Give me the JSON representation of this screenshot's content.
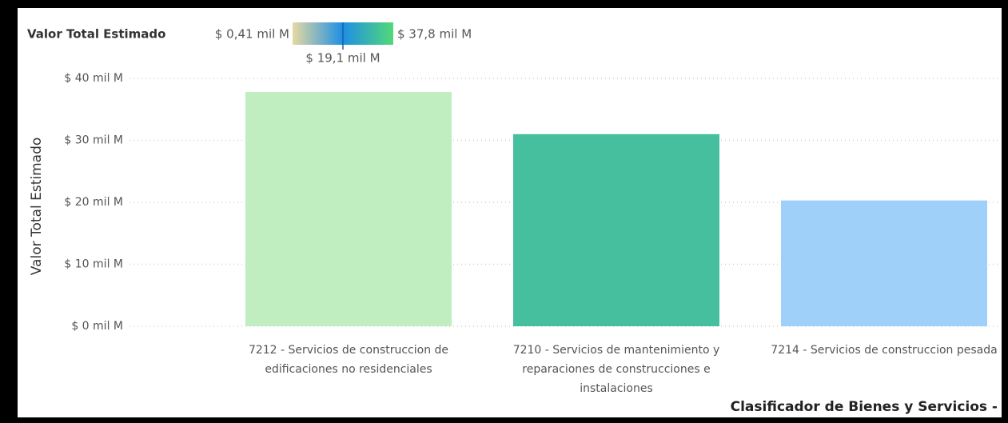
{
  "chart_data": {
    "type": "bar",
    "x_label": "Clasificador de Bienes y Servicios -",
    "y_label": "Valor Total Estimado",
    "categories": [
      "7212 - Servicios de construccion de edificaciones no residenciales",
      "7210 - Servicios de mantenimiento y reparaciones de construcciones e instalaciones",
      "7214 - Servicios de construccion pesada"
    ],
    "values": [
      37.8,
      31,
      20.3
    ],
    "colors": [
      "#c0eec0",
      "#45bf9e",
      "#9fd0fa"
    ],
    "ylim": [
      0,
      40
    ],
    "yticks": [
      {
        "value": 0,
        "label": "$ 0 mil M"
      },
      {
        "value": 10,
        "label": "$ 10 mil M"
      },
      {
        "value": 20,
        "label": "$ 20 mil M"
      },
      {
        "value": 30,
        "label": "$ 30 mil M"
      },
      {
        "value": 40,
        "label": "$ 40 mil M"
      }
    ],
    "grid": true,
    "legend": {
      "title": "Valor Total Estimado",
      "min": {
        "value": 0.41,
        "label": "$ 0,41 mil M"
      },
      "mid": {
        "value": 19.1,
        "label": "$ 19,1 mil M"
      },
      "max": {
        "value": 37.8,
        "label": "$ 37,8 mil M"
      },
      "colors": [
        "#e6d9a2",
        "#1e8fe3",
        "#53d87a"
      ]
    }
  }
}
